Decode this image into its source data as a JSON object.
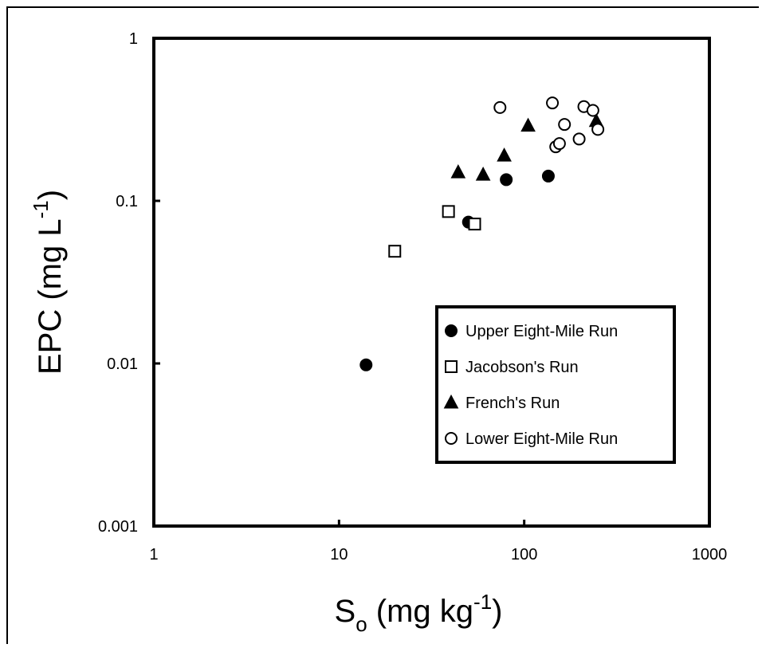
{
  "chart_data": {
    "type": "scatter",
    "x_scale": "log",
    "y_scale": "log",
    "xlim": [
      1,
      1000
    ],
    "ylim": [
      0.001,
      1
    ],
    "x_ticks": [
      "1",
      "10",
      "100",
      "1000"
    ],
    "y_ticks": [
      "0.001",
      "0.01",
      "0.1",
      "1"
    ],
    "xlabel": {
      "main": "S",
      "sub": "o",
      "rest": " (mg kg",
      "sup": "-1",
      "end": ")"
    },
    "ylabel": {
      "main": "EPC (mg L",
      "sup": "-1",
      "end": ")"
    },
    "grid": false,
    "legend_position": "lower-right",
    "series": [
      {
        "name": "Upper Eight-Mile Run",
        "marker": "filled-circle",
        "x": [
          14,
          50,
          80,
          135
        ],
        "y": [
          0.0098,
          0.074,
          0.135,
          0.142
        ]
      },
      {
        "name": "Jacobson's Run",
        "marker": "open-square",
        "x": [
          20,
          39,
          54
        ],
        "y": [
          0.049,
          0.086,
          0.072
        ]
      },
      {
        "name": "French's Run",
        "marker": "filled-triangle",
        "x": [
          44,
          60,
          78,
          105,
          245
        ],
        "y": [
          0.15,
          0.145,
          0.19,
          0.29,
          0.31
        ]
      },
      {
        "name": "Lower Eight-Mile Run",
        "marker": "open-circle",
        "x": [
          74,
          142,
          148,
          155,
          165,
          198,
          210,
          235,
          250
        ],
        "y": [
          0.375,
          0.4,
          0.215,
          0.225,
          0.295,
          0.24,
          0.38,
          0.36,
          0.275
        ]
      }
    ]
  }
}
